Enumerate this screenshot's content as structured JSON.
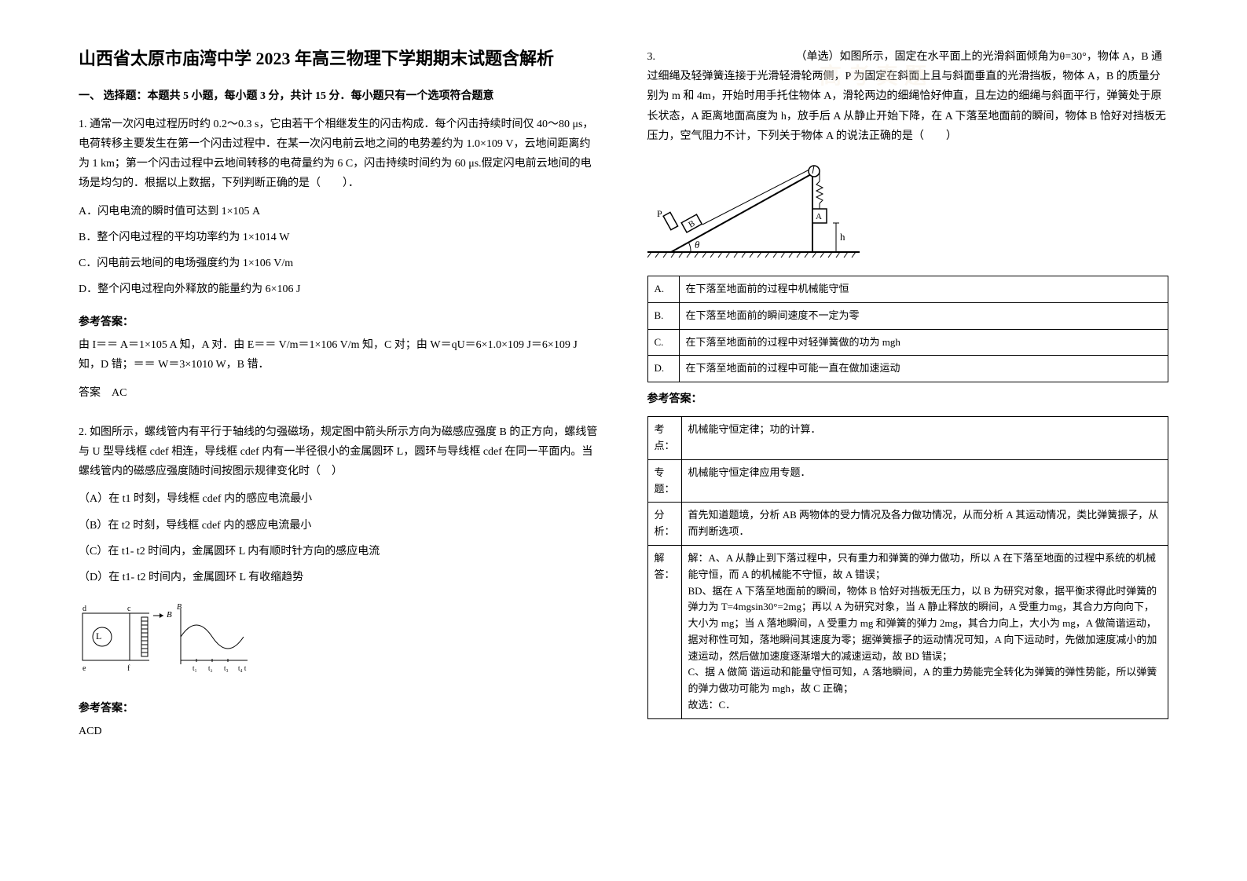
{
  "title": "山西省太原市庙湾中学 2023 年高三物理下学期期末试题含解析",
  "section1_header": "一、 选择题：本题共 5 小题，每小题 3 分，共计 15 分．每小题只有一个选项符合题意",
  "q1": {
    "text": "1. 通常一次闪电过程历时约 0.2～0.3 s，它由若干个相继发生的闪击构成．每个闪击持续时间仅 40～80 μs，电荷转移主要发生在第一个闪击过程中．在某一次闪电前云地之间的电势差约为 1.0×109 V，云地间距离约为 1 km；第一个闪击过程中云地间转移的电荷量约为 6 C，闪击持续时间约为 60 μs.假定闪电前云地间的电场是均匀的．根据以上数据，下列判断正确的是（　　）．",
    "optA": "A．闪电电流的瞬时值可达到 1×105 A",
    "optB": "B．整个闪电过程的平均功率约为 1×1014 W",
    "optC": "C．闪电前云地间的电场强度约为 1×106 V/m",
    "optD": "D．整个闪电过程向外释放的能量约为 6×106 J",
    "answer_label": "参考答案：",
    "answer_text": "由 I＝＝ A＝1×105 A 知，A 对．由 E＝＝ V/m＝1×106 V/m 知，C 对；由 W＝qU＝6×1.0×109 J＝6×109 J 知，D 错；＝＝ W＝3×1010 W，B 错．",
    "answer_final": "答案　AC"
  },
  "q2": {
    "text": "2. 如图所示，螺线管内有平行于轴线的匀强磁场，规定图中箭头所示方向为磁感应强度 B 的正方向，螺线管与 U 型导线框 cdef 相连，导线框 cdef 内有一半径很小的金属圆环 L，圆环与导线框 cdef 在同一平面内。当螺线管内的磁感应强度随时间按图示规律变化时（　）",
    "optA": "（A）在 t1 时刻，导线框 cdef 内的感应电流最小",
    "optB": "（B）在 t2 时刻，导线框 cdef 内的感应电流最小",
    "optC": "（C）在 t1- t2 时间内，金属圆环 L 内有顺时针方向的感应电流",
    "optD": "（D）在 t1- t2 时间内，金属圆环 L 有收缩趋势",
    "answer_label": "参考答案：",
    "answer_final": "ACD"
  },
  "q3": {
    "text": "3. 　　　　　　　　　　　　　（单选）如图所示，固定在水平面上的光滑斜面倾角为θ=30°，物体 A，B 通过细绳及轻弹簧连接于光滑轻滑轮两侧，P 为固定在斜面上且与斜面垂直的光滑挡板，物体 A，B 的质量分别为 m 和 4m，开始时用手托住物体 A，滑轮两边的细绳恰好伸直，且左边的细绳与斜面平行，弹簧处于原长状态，A 距离地面高度为 h，放手后 A 从静止开始下降，在 A 下落至地面前的瞬间，物体 B 恰好对挡板无压力，空气阻力不计，下列关于物体 A 的说法正确的是（　　）",
    "options": {
      "A": "在下落至地面前的过程中机械能守恒",
      "B": "在下落至地面前的瞬间速度不一定为零",
      "C": "在下落至地面前的过程中对轻弹簧做的功为 mgh",
      "D": "在下落至地面前的过程中可能一直在做加速运动"
    },
    "answer_label": "参考答案：",
    "table": {
      "kaodian_label": "考点：",
      "kaodian": "机械能守恒定律；功的计算．",
      "zhuanti_label": "专题：",
      "zhuanti": "机械能守恒定律应用专题．",
      "fenxi_label": "分析：",
      "fenxi": "首先知道题境，分析 AB 两物体的受力情况及各力做功情况，从而分析 A 其运动情况，类比弹簧振子，从而判断选项．",
      "jieda_label": "解答：",
      "jieda": "解：A、A 从静止到下落过程中，只有重力和弹簧的弹力做功，所以 A 在下落至地面的过程中系统的机械能守恒，而 A 的机械能不守恒，故 A 错误；\nBD、据在 A 下落至地面前的瞬间，物体 B 恰好对挡板无压力，以 B 为研究对象，据平衡求得此时弹簧的弹力为 T=4mgsin30°=2mg；再以 A 为研究对象，当 A 静止释放的瞬间，A 受重力mg，其合力方向向下，大小为 mg；当 A 落地瞬间，A 受重力 mg 和弹簧的弹力 2mg，其合力向上，大小为 mg，A 做简谐运动，据对称性可知，落地瞬间其速度为零；据弹簧振子的运动情况可知，A 向下运动时，先做加速度减小的加速运动，然后做加速度逐渐增大的减速运动，故 BD 错误；\nC、据 A 做简 谐运动和能量守恒可知，A 落地瞬间，A 的重力势能完全转化为弹簧的弹性势能，所以弹簧的弹力做功可能为 mgh，故 C 正确；\n故选：C．"
    }
  },
  "colors": {
    "text": "#000000",
    "bg": "#ffffff",
    "border": "#000000",
    "watermark": "#f5e6d3"
  }
}
